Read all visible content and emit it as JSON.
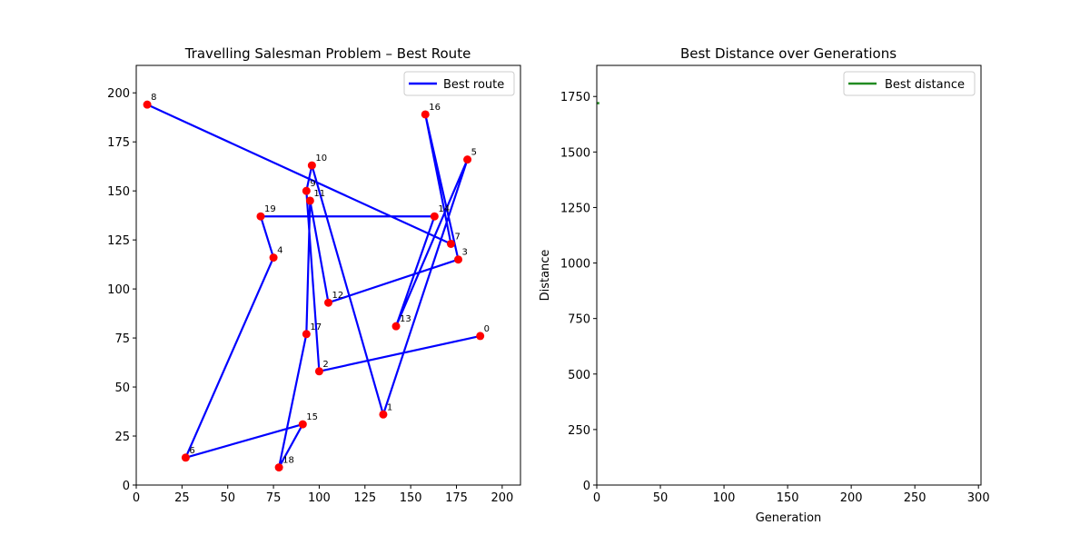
{
  "chart_data": [
    {
      "type": "scatter",
      "title": "Travelling Salesman Problem – Best Route",
      "xlabel": "",
      "ylabel": "",
      "xlim": [
        0,
        210
      ],
      "ylim": [
        0,
        214
      ],
      "xticks": [
        0,
        25,
        50,
        75,
        100,
        125,
        150,
        175,
        200
      ],
      "yticks": [
        0,
        25,
        50,
        75,
        100,
        125,
        150,
        175,
        200
      ],
      "grid": false,
      "legend": {
        "position": "top-right",
        "entries": [
          {
            "label": "Best route",
            "color": "#0000ff"
          }
        ]
      },
      "cities": [
        {
          "label": "0",
          "x": 188,
          "y": 76
        },
        {
          "label": "1",
          "x": 135,
          "y": 36
        },
        {
          "label": "2",
          "x": 100,
          "y": 58
        },
        {
          "label": "3",
          "x": 176,
          "y": 115
        },
        {
          "label": "4",
          "x": 75,
          "y": 116
        },
        {
          "label": "5",
          "x": 181,
          "y": 166
        },
        {
          "label": "6",
          "x": 27,
          "y": 14
        },
        {
          "label": "7",
          "x": 172,
          "y": 123
        },
        {
          "label": "8",
          "x": 6,
          "y": 194
        },
        {
          "label": "9",
          "x": 93,
          "y": 150
        },
        {
          "label": "10",
          "x": 96,
          "y": 163
        },
        {
          "label": "11",
          "x": 95,
          "y": 145
        },
        {
          "label": "12",
          "x": 105,
          "y": 93
        },
        {
          "label": "13",
          "x": 142,
          "y": 81
        },
        {
          "label": "14",
          "x": 163,
          "y": 137
        },
        {
          "label": "15",
          "x": 91,
          "y": 31
        },
        {
          "label": "16",
          "x": 158,
          "y": 189
        },
        {
          "label": "17",
          "x": 93,
          "y": 77
        },
        {
          "label": "18",
          "x": 78,
          "y": 9
        },
        {
          "label": "19",
          "x": 68,
          "y": 137
        }
      ],
      "route": [
        8,
        7,
        16,
        3,
        12,
        11,
        17,
        18,
        15,
        6,
        4,
        19,
        14,
        13,
        5,
        1,
        10,
        9,
        2,
        0
      ],
      "route_color": "#0000ff",
      "point_color": "#ff0000"
    },
    {
      "type": "line",
      "title": "Best Distance over Generations",
      "xlabel": "Generation",
      "ylabel": "Distance",
      "xlim": [
        0,
        302
      ],
      "ylim": [
        0,
        1890
      ],
      "xticks": [
        0,
        50,
        100,
        150,
        200,
        250,
        300
      ],
      "yticks": [
        0,
        250,
        500,
        750,
        1000,
        1250,
        1500,
        1750
      ],
      "grid": false,
      "legend": {
        "position": "top-right",
        "entries": [
          {
            "label": "Best distance",
            "color": "#228b22"
          }
        ]
      },
      "series": [
        {
          "name": "Best distance",
          "color": "#228b22",
          "x": [
            0,
            2
          ],
          "y": [
            1720,
            1720
          ]
        }
      ]
    }
  ]
}
